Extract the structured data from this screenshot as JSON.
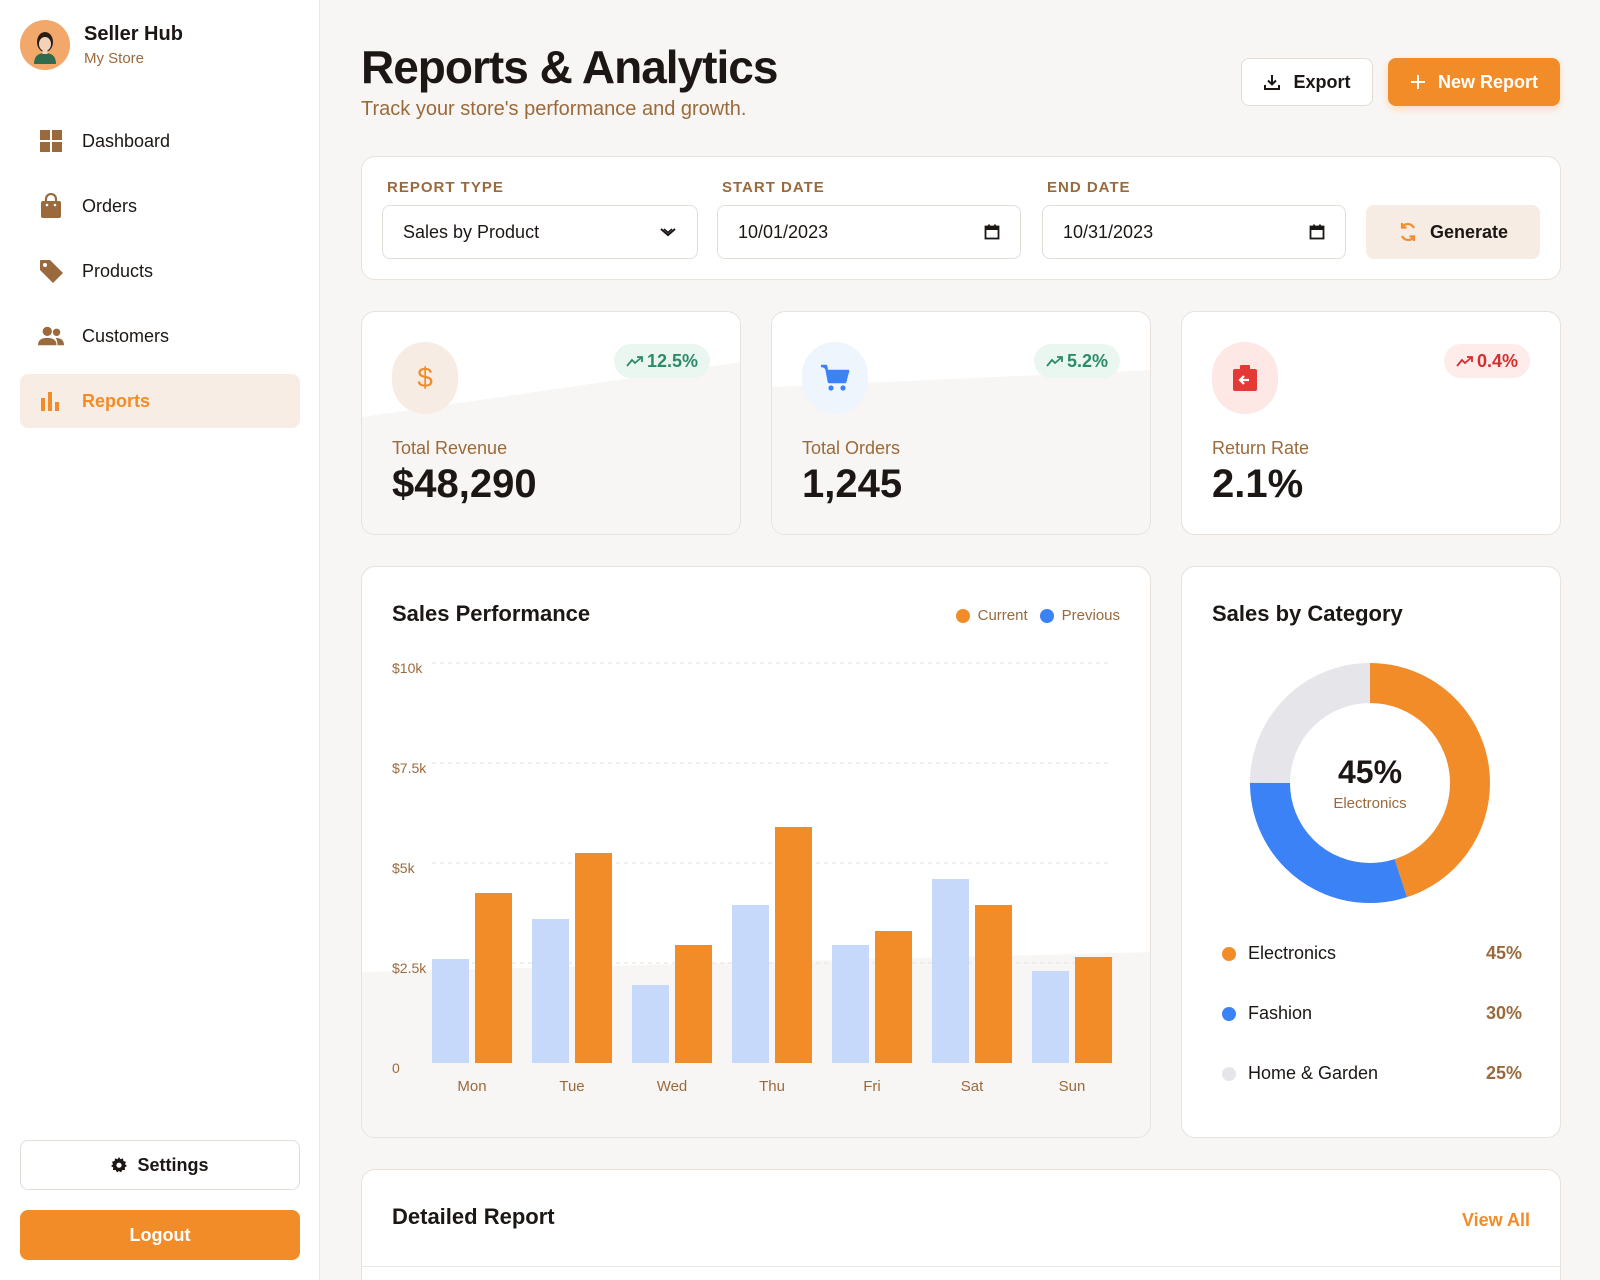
{
  "brand": {
    "title": "Seller Hub",
    "subtitle": "My Store"
  },
  "sidebar": {
    "items": [
      {
        "label": "Dashboard",
        "icon": "grid-icon",
        "active": false
      },
      {
        "label": "Orders",
        "icon": "shopping-bag-icon",
        "active": false
      },
      {
        "label": "Products",
        "icon": "tag-icon",
        "active": false
      },
      {
        "label": "Customers",
        "icon": "users-icon",
        "active": false
      },
      {
        "label": "Reports",
        "icon": "bar-chart-icon",
        "active": true
      }
    ],
    "settings_label": "Settings",
    "logout_label": "Logout"
  },
  "header": {
    "title": "Reports & Analytics",
    "subtitle": "Track your store's performance and growth.",
    "export_label": "Export",
    "new_report_label": "New Report"
  },
  "filters": {
    "report_type_label": "REPORT TYPE",
    "report_type_value": "Sales by Product",
    "start_date_label": "START DATE",
    "start_date_value": "10/01/2023",
    "end_date_label": "END DATE",
    "end_date_value": "10/31/2023",
    "generate_label": "Generate"
  },
  "stats": [
    {
      "label": "Total Revenue",
      "value": "$48,290",
      "change": "12.5%",
      "trend": "up",
      "icon": "dollar-icon"
    },
    {
      "label": "Total Orders",
      "value": "1,245",
      "change": "5.2%",
      "trend": "up",
      "icon": "cart-icon"
    },
    {
      "label": "Return Rate",
      "value": "2.1%",
      "change": "0.4%",
      "trend": "up-bad",
      "icon": "return-icon"
    }
  ],
  "sales_performance": {
    "title": "Sales Performance",
    "legend_current": "Current",
    "legend_previous": "Previous"
  },
  "chart_data": {
    "type": "bar",
    "title": "Sales Performance",
    "categories": [
      "Mon",
      "Tue",
      "Wed",
      "Thu",
      "Fri",
      "Sat",
      "Sun"
    ],
    "series": [
      {
        "name": "Previous",
        "values": [
          2600,
          3600,
          1950,
          3950,
          2950,
          4600,
          2300
        ],
        "color": "#c7d9fb"
      },
      {
        "name": "Current",
        "values": [
          4250,
          5250,
          2950,
          5900,
          3300,
          3950,
          2650
        ],
        "color": "#f28c28"
      }
    ],
    "y_ticks": [
      "0",
      "$2.5k",
      "$5k",
      "$7.5k",
      "$10k"
    ],
    "ylim": [
      0,
      10000
    ],
    "grid": true,
    "legend": "top-right"
  },
  "sales_by_category": {
    "title": "Sales by Category",
    "center_value": "45%",
    "center_label": "Electronics",
    "categories": [
      {
        "name": "Electronics",
        "value": "45%",
        "share": 45,
        "color": "#f28c28"
      },
      {
        "name": "Fashion",
        "value": "30%",
        "share": 30,
        "color": "#3b82f6"
      },
      {
        "name": "Home & Garden",
        "value": "25%",
        "share": 25,
        "color": "#e6e6ea"
      }
    ]
  },
  "detailed_report": {
    "title": "Detailed Report",
    "view_all_label": "View All"
  }
}
